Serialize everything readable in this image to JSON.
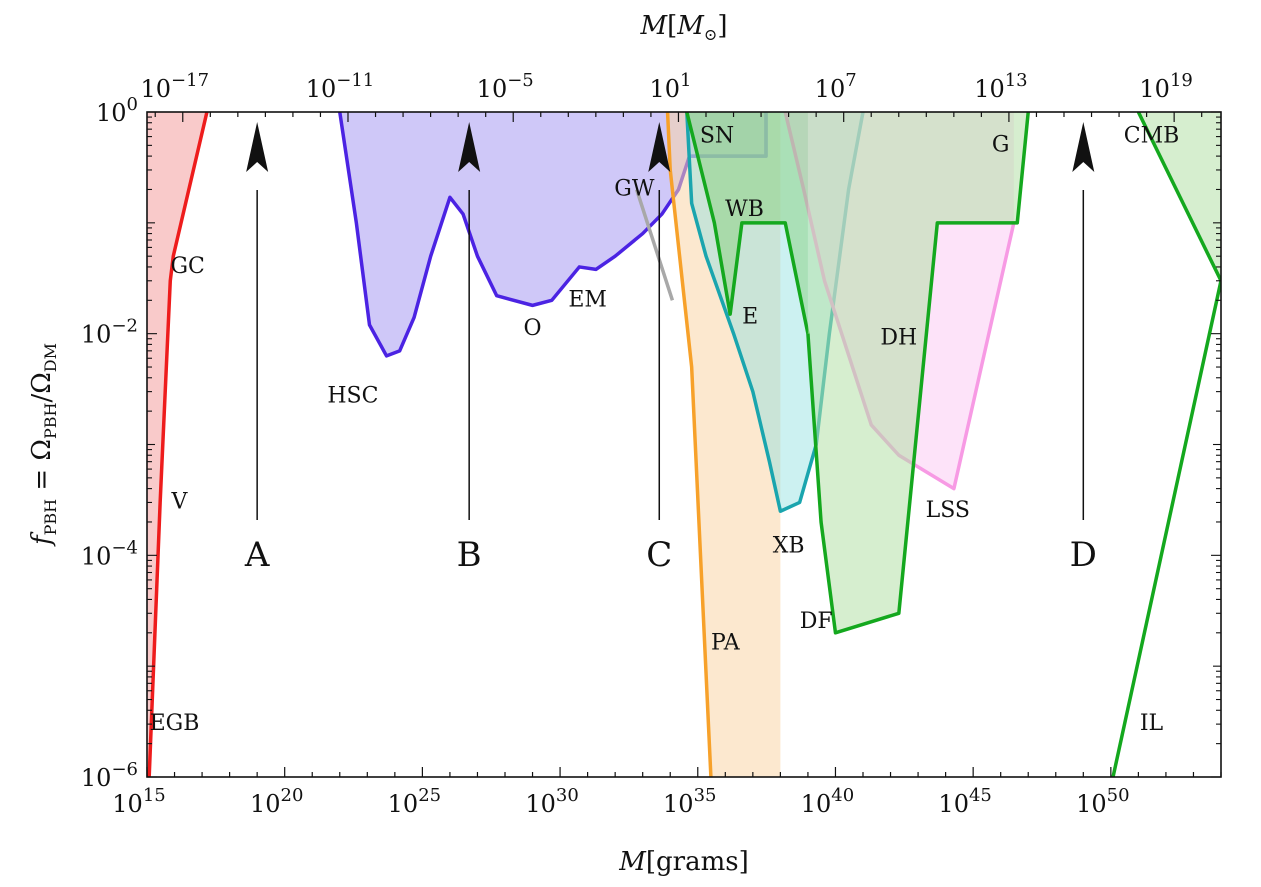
{
  "chart_data": {
    "type": "area",
    "xlabel": "M[grams]",
    "x2label": "M[M⊙]",
    "ylabel": "fPBH = ΩPBH/ΩDM",
    "x_scale": "log",
    "y_scale": "log",
    "xlim": [
      1000000000000000.0,
      1e+54
    ],
    "ylim": [
      1e-06,
      1
    ],
    "x_ticks": [
      {
        "value": 1000000000000000.0,
        "label": "10^15"
      },
      {
        "value": 1e+20,
        "label": "10^20"
      },
      {
        "value": 1e+25,
        "label": "10^25"
      },
      {
        "value": 1e+30,
        "label": "10^30"
      },
      {
        "value": 1e+35,
        "label": "10^35"
      },
      {
        "value": 1e+40,
        "label": "10^40"
      },
      {
        "value": 1e+45,
        "label": "10^45"
      },
      {
        "value": 1e+50,
        "label": "10^50"
      }
    ],
    "x2_ticks": [
      {
        "value": 1e-17,
        "label": "10^-17"
      },
      {
        "value": 1e-11,
        "label": "10^-11"
      },
      {
        "value": 1e-05,
        "label": "10^-5"
      },
      {
        "value": 10,
        "label": "10^1"
      },
      {
        "value": 10000000.0,
        "label": "10^7"
      },
      {
        "value": 10000000000000.0,
        "label": "10^13"
      },
      {
        "value": 1e+19,
        "label": "10^19"
      }
    ],
    "y_ticks": [
      {
        "value": 1,
        "label": "10^0"
      },
      {
        "value": 0.01,
        "label": "10^-2"
      },
      {
        "value": 0.0001,
        "label": "10^-4"
      },
      {
        "value": 1e-06,
        "label": "10^-6"
      }
    ],
    "constraints": [
      {
        "name": "EGB+V+GC",
        "fill": "#f6b3b3",
        "stroke": "#ee1c1c",
        "fill_opacity": 0.7,
        "boundary": [
          [
            1200000000000000.0,
            1e-06
          ],
          [
            3000000000000000.0,
            0.0003
          ],
          [
            7000000000000000.0,
            0.03
          ],
          [
            9000000000000000.0,
            0.05
          ],
          [
            1.5e+17,
            1
          ]
        ],
        "closure": [
          [
            1000000000000000.0,
            1
          ],
          [
            1000000000000000.0,
            1e-06
          ]
        ]
      },
      {
        "name": "HSC+O+EM",
        "fill": "#a79af2",
        "stroke": "#4b23e3",
        "fill_opacity": 0.55,
        "boundary": [
          [
            1e+22,
            1
          ],
          [
            4e+22,
            0.1
          ],
          [
            1.2e+23,
            0.012
          ],
          [
            5e+23,
            0.0063
          ],
          [
            1.5e+24,
            0.007
          ],
          [
            5e+24,
            0.014
          ],
          [
            2e+25,
            0.05
          ],
          [
            1e+26,
            0.17
          ],
          [
            3e+26,
            0.12
          ],
          [
            1e+27,
            0.05
          ],
          [
            5e+27,
            0.022
          ],
          [
            1e+29,
            0.018
          ],
          [
            5e+29,
            0.02
          ],
          [
            5e+30,
            0.04
          ],
          [
            2e+31,
            0.038
          ],
          [
            1e+32,
            0.05
          ],
          [
            1e+33,
            0.08
          ],
          [
            5e+33,
            0.12
          ],
          [
            2e+34,
            0.2
          ],
          [
            5e+34,
            0.4
          ],
          [
            3e+37,
            0.4
          ],
          [
            3e+37,
            1
          ]
        ]
      },
      {
        "name": "SN",
        "fill": "none",
        "stroke": "#1a10d6",
        "fill_opacity": 0,
        "boundary": [
          [
            5e+34,
            0.4
          ],
          [
            3e+37,
            0.4
          ],
          [
            3e+37,
            1
          ]
        ]
      },
      {
        "name": "GW",
        "fill": "none",
        "stroke": "#a8a8a8",
        "fill_opacity": 0,
        "boundary": [
          [
            6e+32,
            0.2
          ],
          [
            1.2e+34,
            0.02
          ]
        ]
      },
      {
        "name": "PA",
        "fill": "#fad6a8",
        "stroke": "#f7a12a",
        "fill_opacity": 0.55,
        "boundary": [
          [
            8e+33,
            1
          ],
          [
            1e+34,
            0.3
          ],
          [
            6e+34,
            0.005
          ],
          [
            3e+35,
            1e-06
          ]
        ],
        "closure": [
          [
            1e+38,
            1e-06
          ],
          [
            1e+38,
            1
          ]
        ]
      },
      {
        "name": "XB",
        "fill": "#8fe0e0",
        "stroke": "#1aa5ae",
        "fill_opacity": 0.45,
        "boundary": [
          [
            4e+34,
            1
          ],
          [
            6e+34,
            0.15
          ],
          [
            2e+35,
            0.05
          ],
          [
            2e+36,
            0.01
          ],
          [
            1e+37,
            0.003
          ],
          [
            4e+37,
            0.0007
          ],
          [
            1e+38,
            0.00025
          ],
          [
            5e+38,
            0.0003
          ],
          [
            2e+39,
            0.001
          ],
          [
            6e+39,
            0.01
          ],
          [
            3e+40,
            0.2
          ],
          [
            1e+41,
            1
          ]
        ]
      },
      {
        "name": "LSS",
        "fill": "#fbc7f3",
        "stroke": "#f79ae4",
        "fill_opacity": 0.5,
        "boundary": [
          [
            1.5e+38,
            1
          ],
          [
            7e+38,
            0.2
          ],
          [
            4e+39,
            0.03
          ],
          [
            2e+41,
            0.0015
          ],
          [
            2e+42,
            0.0008
          ],
          [
            2e+44,
            0.0004
          ],
          [
            3e+46,
            0.1
          ]
        ]
      },
      {
        "name": "E+WB",
        "fill": "#88d07e",
        "stroke": "#14a81e",
        "fill_opacity": 0.5,
        "boundary": [
          [
            4e+34,
            1
          ],
          [
            4e+35,
            0.1
          ],
          [
            1.5e+36,
            0.015
          ],
          [
            4e+36,
            0.1
          ],
          [
            1e+38,
            0.1
          ],
          [
            1.5e+38,
            0.1
          ],
          [
            1e+39,
            0.01
          ]
        ]
      },
      {
        "name": "DF+DH+G",
        "fill": "#b4e0a8",
        "stroke": "#14a81e",
        "fill_opacity": 0.55,
        "boundary": [
          [
            1e+39,
            0.01
          ],
          [
            3e+39,
            0.0002
          ],
          [
            1e+40,
            2e-05
          ],
          [
            2e+42,
            3e-05
          ],
          [
            5e+43,
            0.1
          ],
          [
            1e+44,
            0.1
          ],
          [
            4e+46,
            0.1
          ],
          [
            1e+47,
            1
          ]
        ]
      },
      {
        "name": "CMB",
        "fill": "#b4e0a8",
        "stroke": "#14a81e",
        "fill_opacity": 0.55,
        "boundary": [
          [
            1e+51,
            1
          ],
          [
            1e+54,
            0.03
          ]
        ],
        "closure": [
          [
            1e+54,
            1
          ]
        ]
      },
      {
        "name": "IL",
        "fill": "none",
        "stroke": "#14a81e",
        "fill_opacity": 0,
        "boundary": [
          [
            1.2e+50,
            1e-06
          ],
          [
            1e+54,
            0.03
          ]
        ]
      }
    ],
    "labels": [
      {
        "text": "EGB",
        "x": 1e+16,
        "y": 3e-06
      },
      {
        "text": "V",
        "x": 1.5e+16,
        "y": 0.0003
      },
      {
        "text": "GC",
        "x": 3e+16,
        "y": 0.04
      },
      {
        "text": "HSC",
        "x": 3e+22,
        "y": 0.0027
      },
      {
        "text": "O",
        "x": 1e+29,
        "y": 0.011
      },
      {
        "text": "EM",
        "x": 1e+31,
        "y": 0.02
      },
      {
        "text": "GW",
        "x": 5e+32,
        "y": 0.2
      },
      {
        "text": "SN",
        "x": 5e+35,
        "y": 0.6
      },
      {
        "text": "WB",
        "x": 5e+36,
        "y": 0.13
      },
      {
        "text": "E",
        "x": 8e+36,
        "y": 0.014
      },
      {
        "text": "XB",
        "x": 2e+38,
        "y": 0.00012
      },
      {
        "text": "PA",
        "x": 1e+36,
        "y": 1.6e-05
      },
      {
        "text": "DF",
        "x": 2e+39,
        "y": 2.5e-05
      },
      {
        "text": "DH",
        "x": 2e+42,
        "y": 0.009
      },
      {
        "text": "LSS",
        "x": 1.2e+44,
        "y": 0.00025
      },
      {
        "text": "G",
        "x": 1e+46,
        "y": 0.5
      },
      {
        "text": "CMB",
        "x": 3e+51,
        "y": 0.6
      },
      {
        "text": "IL",
        "x": 3e+51,
        "y": 3e-06
      }
    ],
    "arrows": [
      {
        "label": "A",
        "x": 1e+19
      },
      {
        "label": "B",
        "x": 5e+26
      },
      {
        "label": "C",
        "x": 4e+33
      },
      {
        "label": "D",
        "x": 1e+49
      }
    ]
  }
}
